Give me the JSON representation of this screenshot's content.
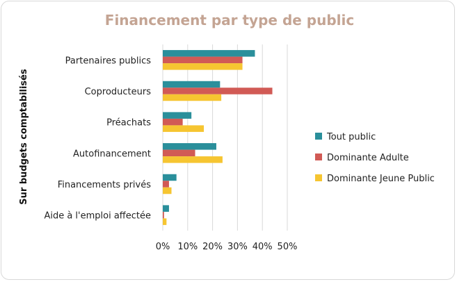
{
  "chart_data": {
    "type": "bar",
    "orientation": "horizontal",
    "title": "Financement par type de public",
    "ylabel": "Sur budgets comptabilisés",
    "xlabel": "",
    "categories": [
      "Partenaires publics",
      "Coproducteurs",
      "Préachats",
      "Autofinancement",
      "Financements privés",
      "Aide à l'emploi affectée"
    ],
    "series": [
      {
        "name": "Tout public",
        "color": "#2a8f9b",
        "values": [
          37,
          23,
          11.5,
          21.5,
          5.5,
          2.5
        ]
      },
      {
        "name": "Dominante Adulte",
        "color": "#d15a55",
        "values": [
          32,
          44,
          8,
          13,
          2.5,
          0.5
        ]
      },
      {
        "name": "Dominante Jeune Public",
        "color": "#f6c531",
        "values": [
          32,
          23.5,
          16.5,
          24,
          3.5,
          1.5
        ]
      }
    ],
    "xlim": [
      0,
      50
    ],
    "xticks": [
      "0%",
      "10%",
      "20%",
      "30%",
      "40%",
      "50%"
    ],
    "grid": true,
    "legend_position": "right",
    "title_color": "#c4a493"
  }
}
